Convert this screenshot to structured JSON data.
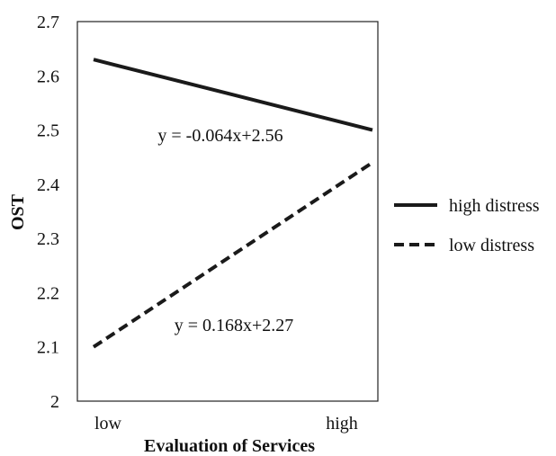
{
  "chart_data": {
    "type": "line",
    "title": "",
    "xlabel": "Evaluation of Services",
    "ylabel": "OST",
    "categories": [
      "low",
      "high"
    ],
    "ylim": [
      2,
      2.7
    ],
    "yticks": [
      "2",
      "2.1",
      "2.2",
      "2.3",
      "2.4",
      "2.5",
      "2.6",
      "2.7"
    ],
    "grid": false,
    "legend_position": "right",
    "series": [
      {
        "name": "high distress",
        "values": [
          2.63,
          2.5
        ],
        "style": "solid",
        "color": "#1a1a1a",
        "equation": "y = -0.064x+2.56"
      },
      {
        "name": "low distress",
        "values": [
          2.1,
          2.44
        ],
        "style": "dashed",
        "color": "#1a1a1a",
        "equation": "y = 0.168x+2.27"
      }
    ]
  }
}
